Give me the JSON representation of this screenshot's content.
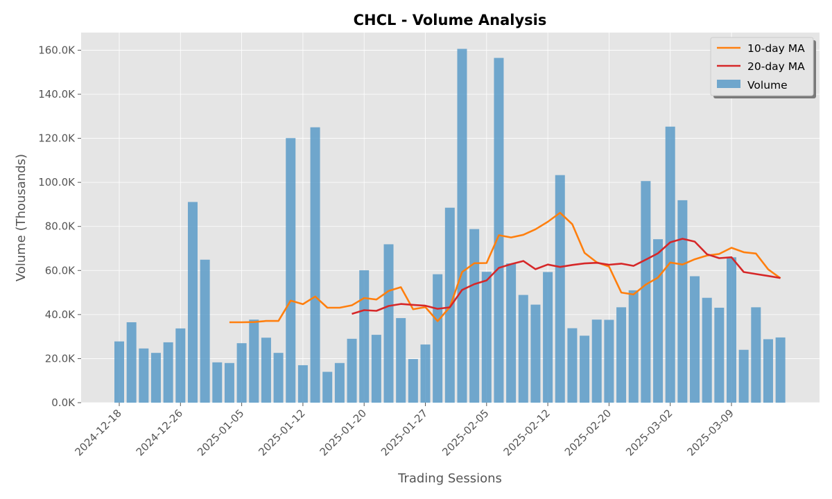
{
  "chart_data": {
    "type": "bar",
    "title": "CHCL - Volume Analysis",
    "xlabel": "Trading Sessions",
    "ylabel": "Volume (Thousands)",
    "ylim": [
      0,
      168
    ],
    "yticks": [
      0,
      20,
      40,
      60,
      80,
      100,
      120,
      140,
      160
    ],
    "ytick_labels": [
      "0.0K",
      "20.0K",
      "40.0K",
      "60.0K",
      "80.0K",
      "100.0K",
      "120.0K",
      "140.0K",
      "160.0K"
    ],
    "xtick_indices": [
      0,
      5,
      10,
      15,
      20,
      25,
      30,
      35,
      40,
      45,
      50
    ],
    "xtick_labels": [
      "2024-12-18",
      "2024-12-26",
      "2025-01-05",
      "2025-01-12",
      "2025-01-20",
      "2025-01-27",
      "2025-02-05",
      "2025-02-12",
      "2025-02-20",
      "2025-03-02",
      "2025-03-09"
    ],
    "grid": true,
    "legend_position": "top-right",
    "colors": {
      "volume": "#5b9bc8",
      "ma10": "#ff7f0e",
      "ma20": "#d62728",
      "plot_bg": "#e5e5e5",
      "grid": "#ffffff"
    },
    "series": [
      {
        "name": "Volume",
        "type": "bar",
        "values": [
          27.8,
          36.5,
          24.6,
          22.6,
          27.4,
          33.7,
          91.1,
          64.9,
          18.3,
          18.0,
          27.0,
          37.7,
          29.5,
          22.6,
          120.1,
          17.0,
          125.0,
          14.0,
          18.0,
          29.0,
          60.1,
          30.8,
          71.9,
          38.4,
          19.8,
          26.4,
          58.3,
          88.5,
          160.6,
          78.8,
          59.4,
          156.5,
          63.2,
          48.9,
          44.5,
          59.3,
          103.3,
          33.8,
          30.4,
          37.7,
          37.6,
          43.3,
          51.0,
          100.6,
          74.2,
          125.3,
          91.9,
          57.4,
          47.6,
          43.1,
          66.0,
          24.0,
          43.3,
          28.8,
          29.6
        ]
      },
      {
        "name": "10-day MA",
        "type": "line",
        "values": [
          null,
          null,
          null,
          null,
          null,
          null,
          null,
          null,
          null,
          36.5,
          36.5,
          36.6,
          37.1,
          37.1,
          46.3,
          44.7,
          48.2,
          43.1,
          43.1,
          44.2,
          47.5,
          46.8,
          50.7,
          52.4,
          42.4,
          43.4,
          37.0,
          43.4,
          59.3,
          63.3,
          63.4,
          76.0,
          75.0,
          76.2,
          78.7,
          82.1,
          86.2,
          81.0,
          68.0,
          63.7,
          61.8,
          50.0,
          49.1,
          53.6,
          56.8,
          63.6,
          62.7,
          65.1,
          66.8,
          67.5,
          70.3,
          68.3,
          67.7,
          60.5,
          56.5
        ]
      },
      {
        "name": "20-day MA",
        "type": "line",
        "values": [
          null,
          null,
          null,
          null,
          null,
          null,
          null,
          null,
          null,
          null,
          null,
          null,
          null,
          null,
          null,
          null,
          null,
          null,
          null,
          40.3,
          42.0,
          41.7,
          43.9,
          44.8,
          44.4,
          44.0,
          42.6,
          43.3,
          51.2,
          53.8,
          55.5,
          61.2,
          62.9,
          64.3,
          60.6,
          62.7,
          61.6,
          62.5,
          63.2,
          63.5,
          62.6,
          63.1,
          62.1,
          64.9,
          67.8,
          72.8,
          74.4,
          73.1,
          67.4,
          65.6,
          66.0,
          59.3,
          58.4,
          57.5,
          56.6
        ]
      }
    ]
  }
}
